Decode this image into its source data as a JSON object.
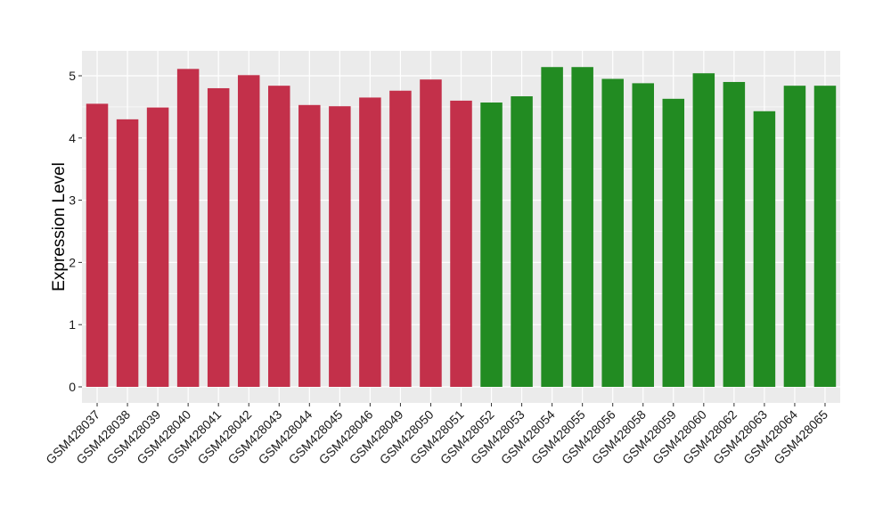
{
  "chart_data": {
    "type": "bar",
    "ylabel": "Expression Level",
    "xlabel": "",
    "ylim": [
      0,
      5.35
    ],
    "yticks": [
      0,
      1,
      2,
      3,
      4,
      5
    ],
    "grid": true,
    "legend": "none",
    "categories": [
      "GSM428037",
      "GSM428038",
      "GSM428039",
      "GSM428040",
      "GSM428041",
      "GSM428042",
      "GSM428043",
      "GSM428044",
      "GSM428045",
      "GSM428046",
      "GSM428049",
      "GSM428050",
      "GSM428051",
      "GSM428052",
      "GSM428053",
      "GSM428054",
      "GSM428055",
      "GSM428056",
      "GSM428058",
      "GSM428059",
      "GSM428060",
      "GSM428062",
      "GSM428063",
      "GSM428064",
      "GSM428065"
    ],
    "values": [
      4.55,
      4.3,
      4.49,
      5.11,
      4.8,
      5.01,
      4.84,
      4.53,
      4.51,
      4.65,
      4.76,
      4.94,
      4.6,
      4.57,
      4.67,
      5.14,
      5.14,
      4.95,
      4.88,
      4.63,
      5.04,
      4.9,
      4.43,
      4.84,
      4.84
    ],
    "group_colors": [
      "#c3304a",
      "#c3304a",
      "#c3304a",
      "#c3304a",
      "#c3304a",
      "#c3304a",
      "#c3304a",
      "#c3304a",
      "#c3304a",
      "#c3304a",
      "#c3304a",
      "#c3304a",
      "#c3304a",
      "#228b22",
      "#228b22",
      "#228b22",
      "#228b22",
      "#228b22",
      "#228b22",
      "#228b22",
      "#228b22",
      "#228b22",
      "#228b22",
      "#228b22",
      "#228b22"
    ],
    "panel_background": "#ebebeb",
    "gridline_color": "#ffffff"
  }
}
